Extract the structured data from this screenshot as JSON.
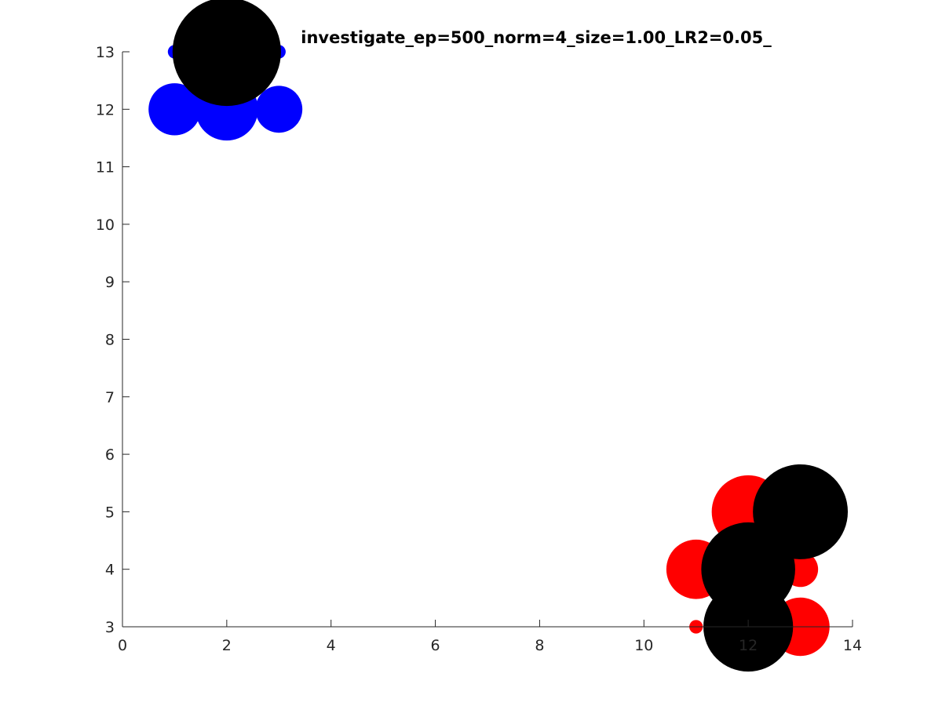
{
  "chart_data": {
    "type": "scatter",
    "title": "investigate_ep=500_norm=4_size=1.00_LR2=0.05_",
    "xlabel": "",
    "ylabel": "",
    "xlim": [
      0,
      14
    ],
    "ylim": [
      3,
      13
    ],
    "xticks": [
      0,
      2,
      4,
      6,
      8,
      10,
      12,
      14
    ],
    "yticks": [
      3,
      4,
      5,
      6,
      7,
      8,
      9,
      10,
      11,
      12,
      13
    ],
    "grid": false,
    "series": [
      {
        "color": "#0000ff",
        "points": [
          {
            "x": 1,
            "y": 13,
            "r": 0.13
          },
          {
            "x": 3,
            "y": 13,
            "r": 0.13
          },
          {
            "x": 1,
            "y": 12,
            "r": 0.5
          },
          {
            "x": 2,
            "y": 12,
            "r": 0.6
          },
          {
            "x": 3,
            "y": 12,
            "r": 0.45
          }
        ]
      },
      {
        "color": "#000000",
        "points": [
          {
            "x": 2,
            "y": 13,
            "r": 1.04
          }
        ]
      },
      {
        "color": "#ff0000",
        "points": [
          {
            "x": 12,
            "y": 5,
            "r": 0.7
          },
          {
            "x": 11,
            "y": 4,
            "r": 0.57
          },
          {
            "x": 13,
            "y": 4,
            "r": 0.34
          },
          {
            "x": 11,
            "y": 3,
            "r": 0.13
          },
          {
            "x": 13,
            "y": 3,
            "r": 0.56
          }
        ]
      },
      {
        "color": "#000000",
        "points": [
          {
            "x": 13,
            "y": 5,
            "r": 0.91
          },
          {
            "x": 12,
            "y": 4,
            "r": 0.9
          },
          {
            "x": 12,
            "y": 3,
            "r": 0.86
          }
        ]
      }
    ]
  }
}
